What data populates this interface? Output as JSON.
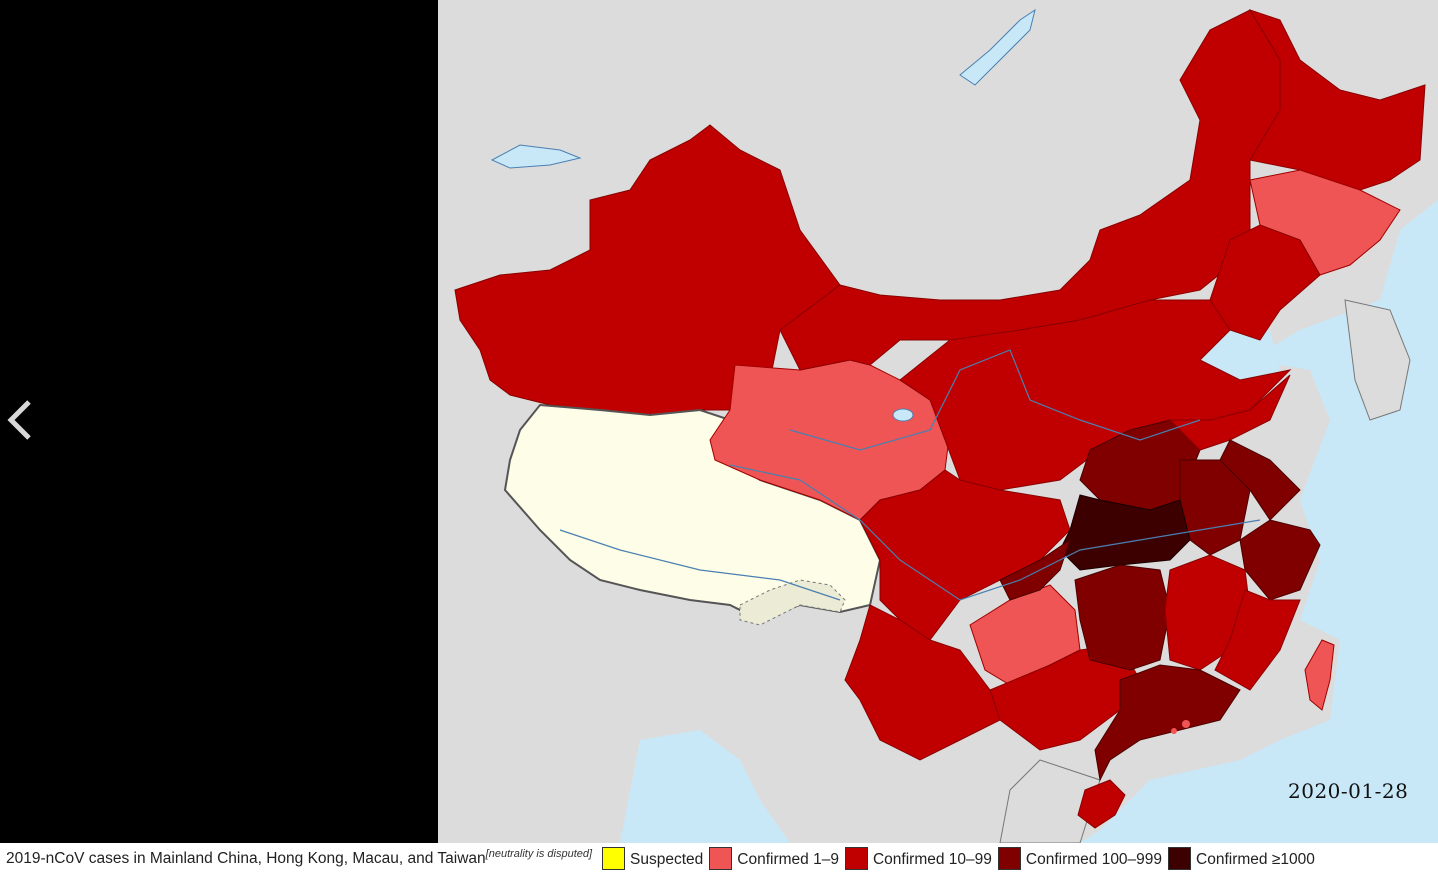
{
  "viewer": {
    "date": "2020-01-28",
    "prev_icon": "chevron-left-icon"
  },
  "caption": {
    "text": "2019-nCoV cases in Mainland China, Hong Kong, Macau, and Taiwan",
    "note": "[neutrality is disputed]"
  },
  "legend": [
    {
      "label": "Suspected",
      "color": "#ffff00"
    },
    {
      "label": "Confirmed 1–9",
      "color": "#ef5555"
    },
    {
      "label": "Confirmed 10–99",
      "color": "#c00000"
    },
    {
      "label": "Confirmed 100–999",
      "color": "#800000"
    },
    {
      "label": "Confirmed ≥1000",
      "color": "#3d0000"
    }
  ],
  "colors": {
    "background_land": "#dcdcdc",
    "sea": "#c8e8f8",
    "tibet": "#fefee8"
  }
}
